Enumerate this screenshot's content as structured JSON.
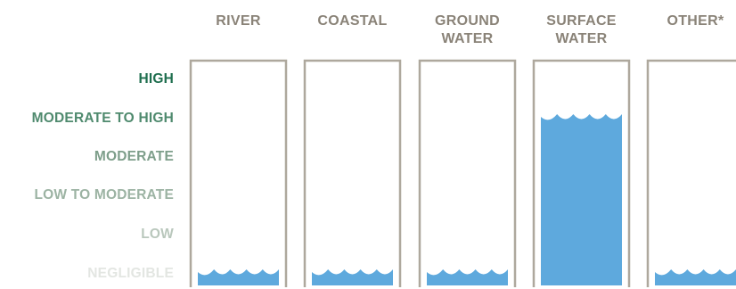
{
  "chart_data": {
    "type": "bar",
    "title": "",
    "xlabel": "",
    "ylabel": "",
    "categories": [
      [
        "RIVER"
      ],
      [
        "COASTAL"
      ],
      [
        "GROUND",
        "WATER"
      ],
      [
        "SURFACE",
        "WATER"
      ],
      [
        "OTHER*"
      ]
    ],
    "levels": [
      "NEGLIGIBLE",
      "LOW",
      "LOW TO MODERATE",
      "MODERATE",
      "MODERATE TO HIGH",
      "HIGH"
    ],
    "values": [
      "NEGLIGIBLE",
      "NEGLIGIBLE",
      "NEGLIGIBLE",
      "MODERATE TO HIGH",
      "NEGLIGIBLE"
    ],
    "level_colors": [
      "#e3e6e2",
      "#b9c7bc",
      "#9cb3a3",
      "#7d9e8a",
      "#4f8a6e",
      "#1e6e4e"
    ],
    "colors": {
      "water": "#5ea9dd",
      "tank_border": "#aea89d",
      "category_text": "#8a8378"
    },
    "grid": false,
    "legend": "none"
  }
}
